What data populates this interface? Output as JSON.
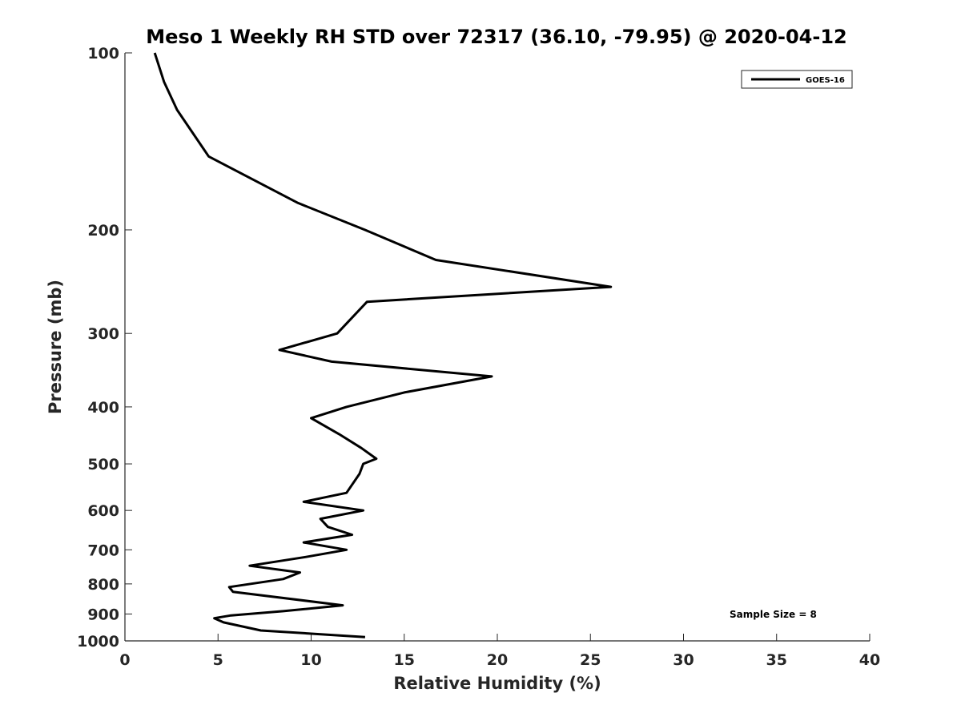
{
  "chart_data": {
    "type": "line",
    "title": "Meso 1 Weekly RH STD over 72317 (36.10, -79.95) @ 2020-04-12",
    "xlabel": "Relative Humidity (%)",
    "ylabel": "Pressure (mb)",
    "xlim": [
      0,
      40
    ],
    "ylim": [
      100,
      1000
    ],
    "y_scale": "log",
    "y_reversed": true,
    "xticks": [
      0,
      5,
      10,
      15,
      20,
      25,
      30,
      35,
      40
    ],
    "xtick_labels": [
      "0",
      "5",
      "10",
      "15",
      "20",
      "25",
      "30",
      "35",
      "40"
    ],
    "yticks": [
      100,
      200,
      300,
      400,
      500,
      600,
      700,
      800,
      900,
      1000
    ],
    "ytick_labels": [
      "100",
      "200",
      "300",
      "400",
      "500",
      "600",
      "700",
      "800",
      "900",
      "1000"
    ],
    "grid": false,
    "legend_position": "top-right",
    "series": [
      {
        "name": "GOES-16",
        "color": "#000000",
        "x": [
          1.6,
          2.1,
          2.8,
          4.5,
          9.3,
          12.9,
          16.7,
          26.1,
          13.0,
          11.4,
          8.3,
          11.1,
          19.7,
          15.0,
          11.9,
          10.0,
          11.5,
          12.7,
          13.5,
          12.8,
          12.6,
          11.9,
          9.6,
          12.8,
          10.5,
          10.9,
          12.2,
          9.6,
          11.9,
          9.7,
          6.7,
          9.4,
          8.5,
          5.6,
          5.8,
          11.7,
          8.5,
          5.7,
          4.8,
          5.3,
          7.3,
          12.9
        ],
        "y": [
          100,
          112,
          125,
          150,
          180,
          200,
          225,
          250,
          265,
          300,
          320,
          335,
          355,
          378,
          400,
          418,
          445,
          470,
          490,
          500,
          520,
          560,
          580,
          600,
          620,
          640,
          660,
          680,
          700,
          720,
          745,
          765,
          785,
          810,
          825,
          870,
          890,
          905,
          915,
          930,
          960,
          985
        ]
      }
    ],
    "annotations": [
      "Sample Size = 8"
    ]
  }
}
